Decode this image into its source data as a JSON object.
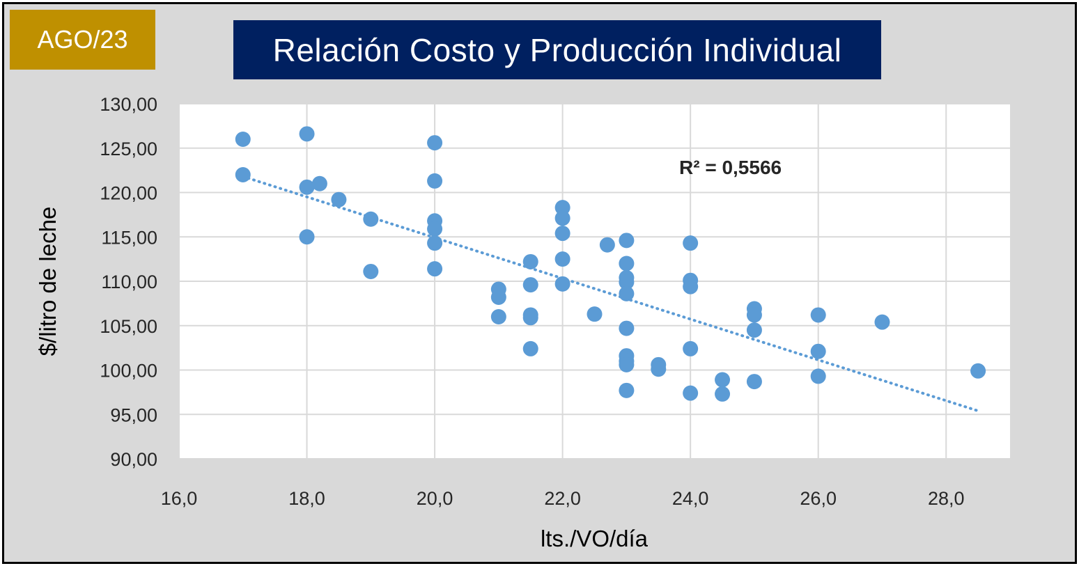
{
  "badge": {
    "label": "AGO/23"
  },
  "chart_data": {
    "type": "scatter",
    "title": "Relación Costo y Producción Individual",
    "xlabel": "lts./VO/día",
    "ylabel": "$/litro de leche",
    "xlim": [
      16,
      29
    ],
    "ylim": [
      90,
      130
    ],
    "x_ticks": [
      "16,0",
      "18,0",
      "20,0",
      "22,0",
      "24,0",
      "26,0",
      "28,0"
    ],
    "y_ticks": [
      "90,00",
      "95,00",
      "100,00",
      "105,00",
      "110,00",
      "115,00",
      "120,00",
      "125,00",
      "130,00"
    ],
    "grid": true,
    "points": [
      [
        17.0,
        126.0
      ],
      [
        17.0,
        122.0
      ],
      [
        18.0,
        126.6
      ],
      [
        18.0,
        120.6
      ],
      [
        18.0,
        115.0
      ],
      [
        18.2,
        121.0
      ],
      [
        18.5,
        119.2
      ],
      [
        19.0,
        117.0
      ],
      [
        19.0,
        111.1
      ],
      [
        20.0,
        125.6
      ],
      [
        20.0,
        121.3
      ],
      [
        20.0,
        116.8
      ],
      [
        20.0,
        115.9
      ],
      [
        20.0,
        114.3
      ],
      [
        20.0,
        111.4
      ],
      [
        21.0,
        109.1
      ],
      [
        21.0,
        108.2
      ],
      [
        21.0,
        106.0
      ],
      [
        21.5,
        112.2
      ],
      [
        21.5,
        109.6
      ],
      [
        21.5,
        106.2
      ],
      [
        21.5,
        105.9
      ],
      [
        21.5,
        102.4
      ],
      [
        22.0,
        118.3
      ],
      [
        22.0,
        117.1
      ],
      [
        22.0,
        115.4
      ],
      [
        22.0,
        112.5
      ],
      [
        22.0,
        109.7
      ],
      [
        22.5,
        106.3
      ],
      [
        22.7,
        114.1
      ],
      [
        23.0,
        114.6
      ],
      [
        23.0,
        112.0
      ],
      [
        23.0,
        110.4
      ],
      [
        23.0,
        109.9
      ],
      [
        23.0,
        108.6
      ],
      [
        23.0,
        104.7
      ],
      [
        23.0,
        101.6
      ],
      [
        23.0,
        101.0
      ],
      [
        23.0,
        100.6
      ],
      [
        23.0,
        97.7
      ],
      [
        23.5,
        100.6
      ],
      [
        23.5,
        100.1
      ],
      [
        24.0,
        114.3
      ],
      [
        24.0,
        110.1
      ],
      [
        24.0,
        109.4
      ],
      [
        24.0,
        102.4
      ],
      [
        24.0,
        97.4
      ],
      [
        24.5,
        98.9
      ],
      [
        24.5,
        97.3
      ],
      [
        25.0,
        106.9
      ],
      [
        25.0,
        106.2
      ],
      [
        25.0,
        104.5
      ],
      [
        25.0,
        98.7
      ],
      [
        26.0,
        106.2
      ],
      [
        26.0,
        102.1
      ],
      [
        26.0,
        99.3
      ],
      [
        27.0,
        105.4
      ],
      [
        28.5,
        99.9
      ]
    ],
    "trendline": {
      "type": "linear",
      "style": "dotted",
      "x": [
        17.0,
        28.5
      ],
      "y": [
        121.8,
        95.4
      ]
    },
    "annotation": "R² = 0,5566"
  },
  "colors": {
    "frame_bg": "#d9d9d9",
    "plot_bg": "#ffffff",
    "grid": "#d9d9d9",
    "marker": "#5b9bd5",
    "badge_bg": "#bf9000",
    "title_bg": "#002060"
  }
}
